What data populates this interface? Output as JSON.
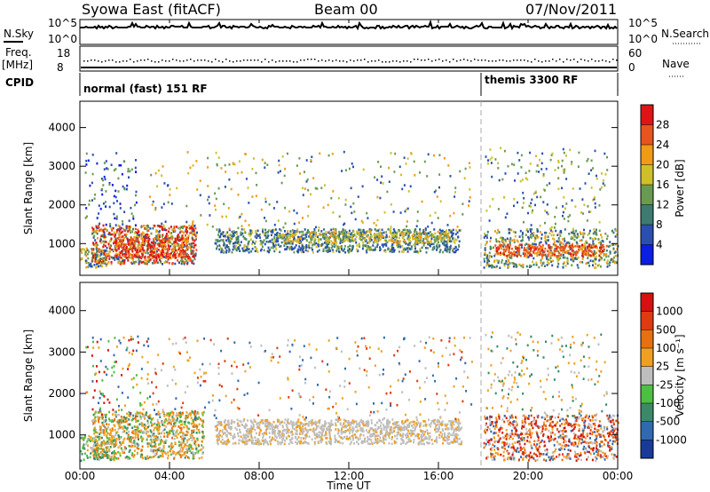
{
  "header": {
    "title_left": "Syowa East (fitACF)",
    "title_center": "Beam 00",
    "title_right": "07/Nov/2011"
  },
  "top_panels": {
    "nsky_label": "N.Sky",
    "nsky_ticks": [
      "10^5",
      "10^0"
    ],
    "nsearch_label": "N.Search",
    "freq_label_1": "Freq.",
    "freq_label_2": "[MHz]",
    "freq_ticks": [
      "18",
      "8"
    ],
    "nave_label": "Nave",
    "nave_ticks": [
      "60",
      "0"
    ],
    "cpid_label": "CPID",
    "cpid_1": "normal (fast) 151 RF",
    "cpid_2": "themis 3300 RF"
  },
  "chart_data": [
    {
      "type": "heatmap",
      "name": "power",
      "xlabel": "",
      "ylabel": "Slant Range [km]",
      "x_ticks": [
        "00:00",
        "04:00",
        "08:00",
        "12:00",
        "16:00",
        "20:00",
        "00:00"
      ],
      "y_ticks": [
        "1000",
        "2000",
        "3000",
        "4000"
      ],
      "colorbar_label": "Power [dB]",
      "colorbar_ticks": [
        "4",
        "8",
        "12",
        "16",
        "20",
        "24",
        "28"
      ],
      "colors": [
        "#0a1ee6",
        "#2a4fb0",
        "#3d7a70",
        "#6a9a50",
        "#cfc02a",
        "#f29a14",
        "#e8541e",
        "#e01414"
      ]
    },
    {
      "type": "heatmap",
      "name": "velocity",
      "xlabel": "Time UT",
      "ylabel": "Slant Range [km]",
      "x_ticks": [
        "00:00",
        "04:00",
        "08:00",
        "12:00",
        "16:00",
        "20:00",
        "00:00"
      ],
      "y_ticks": [
        "1000",
        "2000",
        "3000",
        "4000"
      ],
      "colorbar_label": "Velocity [m s⁻¹]",
      "colorbar_ticks": [
        "1000",
        "500",
        "100",
        "25",
        "-25",
        "-100",
        "-500",
        "-1000"
      ],
      "colors": [
        "#1a3a9a",
        "#2f6ab0",
        "#3a8a6a",
        "#4cc040",
        "#bebebe",
        "#f0a020",
        "#e87010",
        "#e03a10",
        "#d81010"
      ]
    }
  ]
}
